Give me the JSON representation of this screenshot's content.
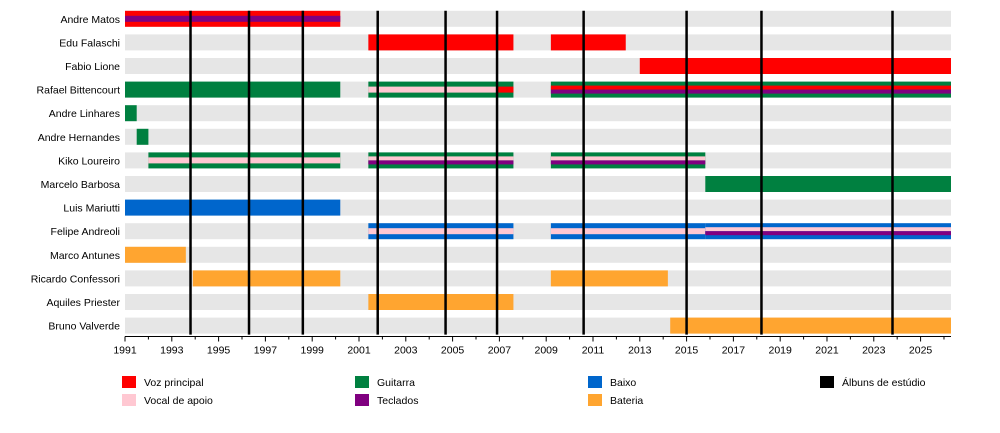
{
  "chart_data": {
    "type": "timeline",
    "title": "",
    "x_range": [
      1991,
      2026.3
    ],
    "x_ticks": [
      "1991",
      "1993",
      "1995",
      "1997",
      "1999",
      "2001",
      "2003",
      "2005",
      "2007",
      "2009",
      "2011",
      "2013",
      "2015",
      "2017",
      "2019",
      "2021",
      "2023",
      "2025"
    ],
    "album_years": [
      1993.8,
      1996.3,
      1998.6,
      2001.8,
      2004.7,
      2006.9,
      2010.6,
      2015.0,
      2018.2,
      2023.8
    ],
    "members": [
      {
        "name": "Andre Matos",
        "periods": [
          {
            "start": 1991.0,
            "end": 2000.2,
            "roles": [
              "Voz principal",
              "Teclados"
            ]
          }
        ]
      },
      {
        "name": "Edu Falaschi",
        "periods": [
          {
            "start": 2001.4,
            "end": 2007.6,
            "roles": [
              "Voz principal"
            ]
          },
          {
            "start": 2009.2,
            "end": 2012.4,
            "roles": [
              "Voz principal"
            ]
          }
        ]
      },
      {
        "name": "Fabio Lione",
        "periods": [
          {
            "start": 2013.0,
            "end": 2026.3,
            "roles": [
              "Voz principal"
            ]
          }
        ]
      },
      {
        "name": "Rafael Bittencourt",
        "periods": [
          {
            "start": 1991.0,
            "end": 2000.2,
            "roles": [
              "Guitarra"
            ]
          },
          {
            "start": 2001.4,
            "end": 2006.9,
            "roles": [
              "Guitarra",
              "Vocal de apoio"
            ]
          },
          {
            "start": 2006.9,
            "end": 2007.6,
            "roles": [
              "Guitarra",
              "Voz principal"
            ]
          },
          {
            "start": 2009.2,
            "end": 2026.3,
            "roles": [
              "Guitarra",
              "Voz principal",
              "Teclados"
            ]
          }
        ]
      },
      {
        "name": "Andre Linhares",
        "periods": [
          {
            "start": 1991.0,
            "end": 1991.5,
            "roles": [
              "Guitarra"
            ]
          }
        ]
      },
      {
        "name": "Andre Hernandes",
        "periods": [
          {
            "start": 1991.5,
            "end": 1992.0,
            "roles": [
              "Guitarra"
            ]
          }
        ]
      },
      {
        "name": "Kiko Loureiro",
        "periods": [
          {
            "start": 1992.0,
            "end": 2000.2,
            "roles": [
              "Guitarra",
              "Vocal de apoio"
            ]
          },
          {
            "start": 2001.4,
            "end": 2007.6,
            "roles": [
              "Guitarra",
              "Vocal de apoio",
              "Teclados"
            ]
          },
          {
            "start": 2009.2,
            "end": 2015.8,
            "roles": [
              "Guitarra",
              "Vocal de apoio",
              "Teclados"
            ]
          }
        ]
      },
      {
        "name": "Marcelo Barbosa",
        "periods": [
          {
            "start": 2015.8,
            "end": 2026.3,
            "roles": [
              "Guitarra"
            ]
          }
        ]
      },
      {
        "name": "Luis Mariutti",
        "periods": [
          {
            "start": 1991.0,
            "end": 2000.2,
            "roles": [
              "Baixo"
            ]
          }
        ]
      },
      {
        "name": "Felipe Andreoli",
        "periods": [
          {
            "start": 2001.4,
            "end": 2007.6,
            "roles": [
              "Baixo",
              "Vocal de apoio"
            ]
          },
          {
            "start": 2009.2,
            "end": 2015.8,
            "roles": [
              "Baixo",
              "Vocal de apoio"
            ]
          },
          {
            "start": 2015.8,
            "end": 2026.3,
            "roles": [
              "Baixo",
              "Vocal de apoio",
              "Teclados"
            ]
          }
        ]
      },
      {
        "name": "Marco Antunes",
        "periods": [
          {
            "start": 1991.0,
            "end": 1993.6,
            "roles": [
              "Bateria"
            ]
          }
        ]
      },
      {
        "name": "Ricardo Confessori",
        "periods": [
          {
            "start": 1993.9,
            "end": 2000.2,
            "roles": [
              "Bateria"
            ]
          },
          {
            "start": 2009.2,
            "end": 2014.2,
            "roles": [
              "Bateria"
            ]
          }
        ]
      },
      {
        "name": "Aquiles Priester",
        "periods": [
          {
            "start": 2001.4,
            "end": 2007.6,
            "roles": [
              "Bateria"
            ]
          }
        ]
      },
      {
        "name": "Bruno Valverde",
        "periods": [
          {
            "start": 2014.3,
            "end": 2026.3,
            "roles": [
              "Bateria"
            ]
          }
        ]
      }
    ],
    "legend": [
      {
        "label": "Voz principal",
        "color": "#ff0000"
      },
      {
        "label": "Vocal de apoio",
        "color": "#ffc8d2"
      },
      {
        "label": "Guitarra",
        "color": "#008040"
      },
      {
        "label": "Teclados",
        "color": "#800080"
      },
      {
        "label": "Baixo",
        "color": "#0066cc"
      },
      {
        "label": "Bateria",
        "color": "#ffa530"
      },
      {
        "label": "Álbuns de estúdio",
        "color": "#000000"
      }
    ],
    "colors": {
      "Voz principal": "#ff0000",
      "Vocal de apoio": "#ffc8d2",
      "Guitarra": "#008040",
      "Teclados": "#800080",
      "Baixo": "#0066cc",
      "Bateria": "#ffa530",
      "row_background": "#e6e6e6",
      "album_line": "#000000"
    }
  }
}
